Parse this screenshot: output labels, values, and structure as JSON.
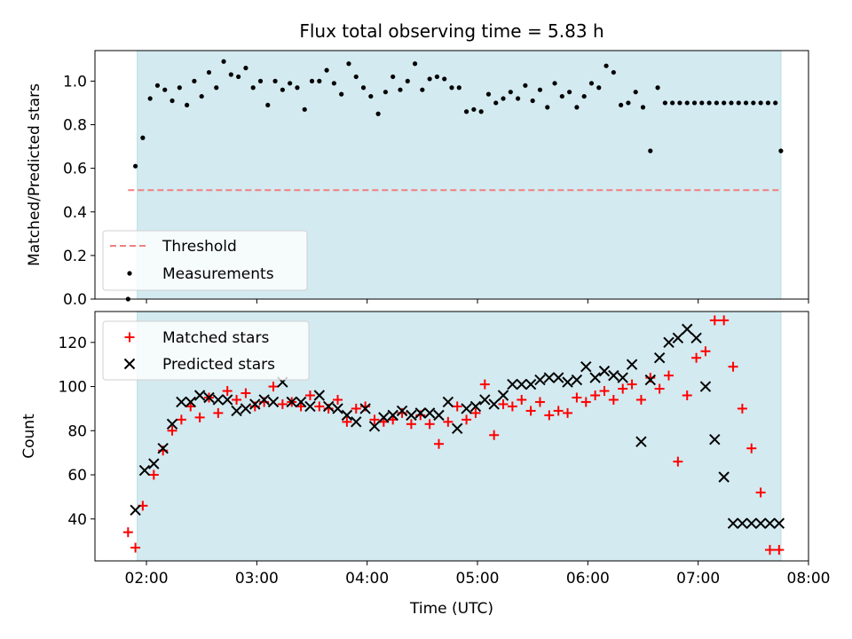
{
  "chart_data": [
    {
      "type": "scatter",
      "title": "Flux total observing time = 5.83 h",
      "ylabel": "Matched/Predicted stars",
      "xlim": [
        "01:32",
        "08:00"
      ],
      "ylim": [
        0,
        1.14
      ],
      "x_ticks": [
        "02:00",
        "03:00",
        "04:00",
        "05:00",
        "06:00",
        "07:00",
        "08:00"
      ],
      "y_ticks": [
        "0.0",
        "0.2",
        "0.4",
        "0.6",
        "0.8",
        "1.0"
      ],
      "shaded_span": [
        "01:55",
        "07:45"
      ],
      "shade_color": "#d3eaf0",
      "threshold": {
        "name": "Threshold",
        "value": 0.5,
        "x_range": [
          "01:50",
          "07:45"
        ],
        "color": "#f08080",
        "style": "dashed"
      },
      "legend": {
        "placement": "lower-left",
        "entries": [
          "Threshold",
          "Measurements"
        ]
      },
      "series": [
        {
          "name": "Measurements",
          "marker": "dot",
          "color": "#000000",
          "x": [
            "01:50",
            "01:54",
            "01:58",
            "02:02",
            "02:06",
            "02:10",
            "02:14",
            "02:18",
            "02:22",
            "02:26",
            "02:30",
            "02:34",
            "02:38",
            "02:42",
            "02:46",
            "02:50",
            "02:54",
            "02:58",
            "03:02",
            "03:06",
            "03:10",
            "03:14",
            "03:18",
            "03:22",
            "03:26",
            "03:30",
            "03:34",
            "03:38",
            "03:42",
            "03:46",
            "03:50",
            "03:54",
            "03:58",
            "04:02",
            "04:06",
            "04:10",
            "04:14",
            "04:18",
            "04:22",
            "04:26",
            "04:30",
            "04:34",
            "04:38",
            "04:42",
            "04:46",
            "04:50",
            "04:54",
            "04:58",
            "05:02",
            "05:06",
            "05:10",
            "05:14",
            "05:18",
            "05:22",
            "05:26",
            "05:30",
            "05:34",
            "05:38",
            "05:42",
            "05:46",
            "05:50",
            "05:54",
            "05:58",
            "06:02",
            "06:06",
            "06:10",
            "06:14",
            "06:18",
            "06:22",
            "06:26",
            "06:30",
            "06:34",
            "06:38",
            "06:42",
            "06:46",
            "06:50",
            "06:54",
            "06:58",
            "07:02",
            "07:06",
            "07:10",
            "07:14",
            "07:18",
            "07:22",
            "07:26",
            "07:30",
            "07:34",
            "07:38",
            "07:42",
            "07:45"
          ],
          "y": [
            0.0,
            0.61,
            0.74,
            0.92,
            0.98,
            0.96,
            0.91,
            0.97,
            0.89,
            1.0,
            0.93,
            1.04,
            0.97,
            1.09,
            1.03,
            1.02,
            1.06,
            0.97,
            1.0,
            0.89,
            1.0,
            0.96,
            0.99,
            0.97,
            0.87,
            1.0,
            1.0,
            1.05,
            0.99,
            0.94,
            1.08,
            1.02,
            0.97,
            0.93,
            0.85,
            0.95,
            1.02,
            0.96,
            1.0,
            1.08,
            0.96,
            1.01,
            1.02,
            1.01,
            0.97,
            0.97,
            0.86,
            0.87,
            0.86,
            0.94,
            0.9,
            0.92,
            0.95,
            0.92,
            0.98,
            0.91,
            0.96,
            0.88,
            0.99,
            0.93,
            0.95,
            0.88,
            0.93,
            0.99,
            0.97,
            1.07,
            1.04,
            0.89,
            0.9,
            0.95,
            0.88,
            0.68,
            0.97,
            0.9,
            0.9,
            0.9,
            0.9,
            0.9,
            0.9,
            0.9,
            0.9,
            0.9,
            0.9,
            0.9,
            0.9,
            0.9,
            0.9,
            0.9,
            0.9,
            0.68
          ]
        }
      ]
    },
    {
      "type": "scatter",
      "xlabel": "Time (UTC)",
      "ylabel": "Count",
      "xlim": [
        "01:32",
        "08:00"
      ],
      "ylim": [
        21,
        134
      ],
      "x_ticks": [
        "02:00",
        "03:00",
        "04:00",
        "05:00",
        "06:00",
        "07:00",
        "08:00"
      ],
      "y_ticks": [
        "40",
        "60",
        "80",
        "100",
        "120"
      ],
      "shaded_span": [
        "01:55",
        "07:45"
      ],
      "shade_color": "#d3eaf0",
      "legend": {
        "placement": "upper-left",
        "entries": [
          "Matched stars",
          "Predicted stars"
        ]
      },
      "series": [
        {
          "name": "Matched stars",
          "marker": "plus",
          "color": "#ff0000",
          "x": [
            "01:50",
            "01:54",
            "01:58",
            "02:04",
            "02:09",
            "02:14",
            "02:19",
            "02:24",
            "02:29",
            "02:34",
            "02:39",
            "02:44",
            "02:49",
            "02:54",
            "02:59",
            "03:04",
            "03:09",
            "03:14",
            "03:19",
            "03:24",
            "03:29",
            "03:34",
            "03:39",
            "03:44",
            "03:49",
            "03:54",
            "03:59",
            "04:04",
            "04:09",
            "04:14",
            "04:19",
            "04:24",
            "04:29",
            "04:34",
            "04:39",
            "04:44",
            "04:49",
            "04:54",
            "04:59",
            "05:04",
            "05:09",
            "05:14",
            "05:19",
            "05:24",
            "05:29",
            "05:34",
            "05:39",
            "05:44",
            "05:49",
            "05:54",
            "05:59",
            "06:04",
            "06:09",
            "06:14",
            "06:19",
            "06:24",
            "06:29",
            "06:34",
            "06:39",
            "06:44",
            "06:49",
            "06:54",
            "06:59",
            "07:04",
            "07:09",
            "07:14",
            "07:19",
            "07:24",
            "07:29",
            "07:34",
            "07:39",
            "07:44"
          ],
          "y": [
            34,
            27,
            46,
            60,
            71,
            80,
            85,
            91,
            86,
            95,
            88,
            98,
            94,
            97,
            91,
            93,
            100,
            92,
            93,
            91,
            96,
            91,
            90,
            94,
            84,
            90,
            91,
            85,
            84,
            85,
            88,
            83,
            87,
            83,
            74,
            84,
            91,
            85,
            88,
            101,
            78,
            92,
            91,
            94,
            89,
            93,
            87,
            89,
            88,
            95,
            93,
            96,
            98,
            94,
            99,
            101,
            94,
            104,
            99,
            105,
            66,
            96,
            113,
            116,
            130,
            130,
            109,
            90,
            72,
            52,
            26,
            26
          ]
        },
        {
          "name": "Predicted stars",
          "marker": "x",
          "color": "#000000",
          "x": [
            "01:54",
            "01:59",
            "02:04",
            "02:09",
            "02:14",
            "02:19",
            "02:24",
            "02:29",
            "02:34",
            "02:39",
            "02:44",
            "02:49",
            "02:54",
            "02:59",
            "03:04",
            "03:09",
            "03:14",
            "03:19",
            "03:24",
            "03:29",
            "03:34",
            "03:39",
            "03:44",
            "03:49",
            "03:54",
            "03:59",
            "04:04",
            "04:09",
            "04:14",
            "04:19",
            "04:24",
            "04:29",
            "04:34",
            "04:39",
            "04:44",
            "04:49",
            "04:54",
            "04:59",
            "05:04",
            "05:09",
            "05:14",
            "05:19",
            "05:24",
            "05:29",
            "05:34",
            "05:39",
            "05:44",
            "05:49",
            "05:54",
            "05:59",
            "06:04",
            "06:09",
            "06:14",
            "06:19",
            "06:24",
            "06:29",
            "06:34",
            "06:39",
            "06:44",
            "06:49",
            "06:54",
            "06:59",
            "07:04",
            "07:09",
            "07:14",
            "07:19",
            "07:24",
            "07:29",
            "07:34",
            "07:39",
            "07:44"
          ],
          "y": [
            44,
            62,
            65,
            72,
            83,
            93,
            93,
            96,
            95,
            94,
            94,
            89,
            90,
            92,
            94,
            93,
            102,
            93,
            93,
            91,
            96,
            91,
            90,
            87,
            84,
            90,
            82,
            86,
            87,
            89,
            87,
            88,
            88,
            87,
            93,
            81,
            90,
            91,
            94,
            92,
            96,
            101,
            101,
            101,
            103,
            104,
            104,
            102,
            103,
            109,
            104,
            107,
            105,
            104,
            110,
            75,
            103,
            113,
            120,
            122,
            126,
            122,
            100,
            76,
            59,
            38,
            38,
            38,
            38,
            38,
            38
          ]
        }
      ]
    }
  ]
}
